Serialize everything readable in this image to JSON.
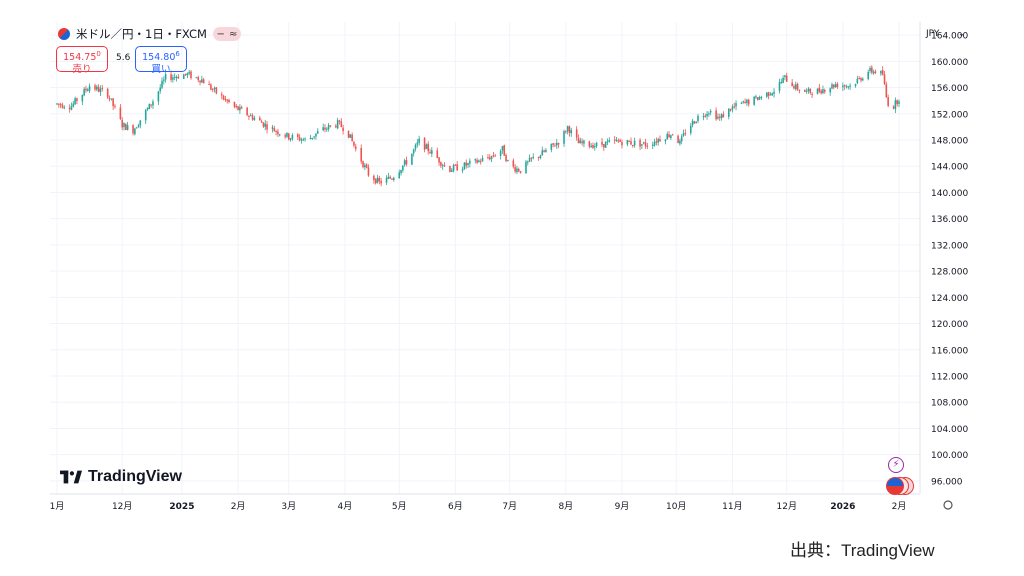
{
  "header": {
    "title": "米ドル／円・1日・FXCM",
    "sell_price": "154.75",
    "sell_price_sup": "0",
    "sell_label": "売り",
    "spread": "5.6",
    "buy_price": "154.80",
    "buy_price_sup": "6",
    "buy_label": "買い",
    "currency": "JPY"
  },
  "branding": {
    "logo_text": "TradingView",
    "source_text": "出典：TradingView"
  },
  "colors": {
    "up": "#26a69a",
    "down": "#ef5350",
    "grid": "#f0f3fa",
    "axis_text": "#131722"
  },
  "chart_data": {
    "type": "candlestick",
    "instrument": "米ドル／円・1日・FXCM",
    "ylim": [
      94.0,
      166.0
    ],
    "y_ticks": [
      "96.000",
      "100.000",
      "104.000",
      "108.000",
      "112.000",
      "116.000",
      "120.000",
      "124.000",
      "128.000",
      "132.000",
      "136.000",
      "140.000",
      "144.000",
      "148.000",
      "152.000",
      "156.000",
      "160.000",
      "164.000"
    ],
    "x_ticks": [
      "1月",
      "12月",
      "2025",
      "2月",
      "3月",
      "4月",
      "5月",
      "6月",
      "7月",
      "8月",
      "9月",
      "10月",
      "11月",
      "12月",
      "2026",
      "2月"
    ],
    "x_tick_positions_days": [
      0,
      36,
      69,
      100,
      128,
      159,
      189,
      220,
      250,
      281,
      312,
      342,
      373,
      403,
      434,
      465
    ],
    "close_path": [
      [
        0,
        153.5
      ],
      [
        8,
        153.2
      ],
      [
        18,
        156.3
      ],
      [
        28,
        155.0
      ],
      [
        36,
        150.3
      ],
      [
        42,
        149.5
      ],
      [
        52,
        153.5
      ],
      [
        60,
        157.5
      ],
      [
        72,
        158.0
      ],
      [
        80,
        157.2
      ],
      [
        88,
        155.2
      ],
      [
        98,
        153.0
      ],
      [
        108,
        151.5
      ],
      [
        118,
        149.8
      ],
      [
        128,
        148.5
      ],
      [
        138,
        148.0
      ],
      [
        146,
        149.5
      ],
      [
        155,
        150.5
      ],
      [
        160,
        149.5
      ],
      [
        166,
        146.0
      ],
      [
        172,
        142.8
      ],
      [
        178,
        141.5
      ],
      [
        185,
        142.3
      ],
      [
        194,
        145.0
      ],
      [
        200,
        147.8
      ],
      [
        208,
        145.8
      ],
      [
        216,
        143.5
      ],
      [
        224,
        144.0
      ],
      [
        232,
        144.7
      ],
      [
        240,
        145.5
      ],
      [
        246,
        146.6
      ],
      [
        250,
        144.0
      ],
      [
        256,
        143.4
      ],
      [
        262,
        145.0
      ],
      [
        270,
        146.3
      ],
      [
        278,
        148.0
      ],
      [
        282,
        150.0
      ],
      [
        288,
        147.5
      ],
      [
        298,
        147.2
      ],
      [
        310,
        147.8
      ],
      [
        320,
        147.5
      ],
      [
        326,
        147.3
      ],
      [
        335,
        148.5
      ],
      [
        340,
        149.0
      ],
      [
        344,
        147.5
      ],
      [
        348,
        149.8
      ],
      [
        354,
        151.5
      ],
      [
        360,
        152.5
      ],
      [
        366,
        151.3
      ],
      [
        372,
        152.8
      ],
      [
        378,
        153.5
      ],
      [
        384,
        154.0
      ],
      [
        390,
        154.8
      ],
      [
        396,
        155.6
      ],
      [
        402,
        157.5
      ],
      [
        408,
        156.0
      ],
      [
        414,
        155.3
      ],
      [
        420,
        155.5
      ],
      [
        426,
        156.0
      ],
      [
        430,
        156.5
      ],
      [
        438,
        156.3
      ],
      [
        444,
        157.5
      ],
      [
        448,
        158.5
      ],
      [
        452,
        158.5
      ],
      [
        456,
        158.0
      ],
      [
        458,
        154.5
      ],
      [
        460,
        152.8
      ],
      [
        462,
        153.2
      ],
      [
        466,
        154.8
      ]
    ]
  }
}
